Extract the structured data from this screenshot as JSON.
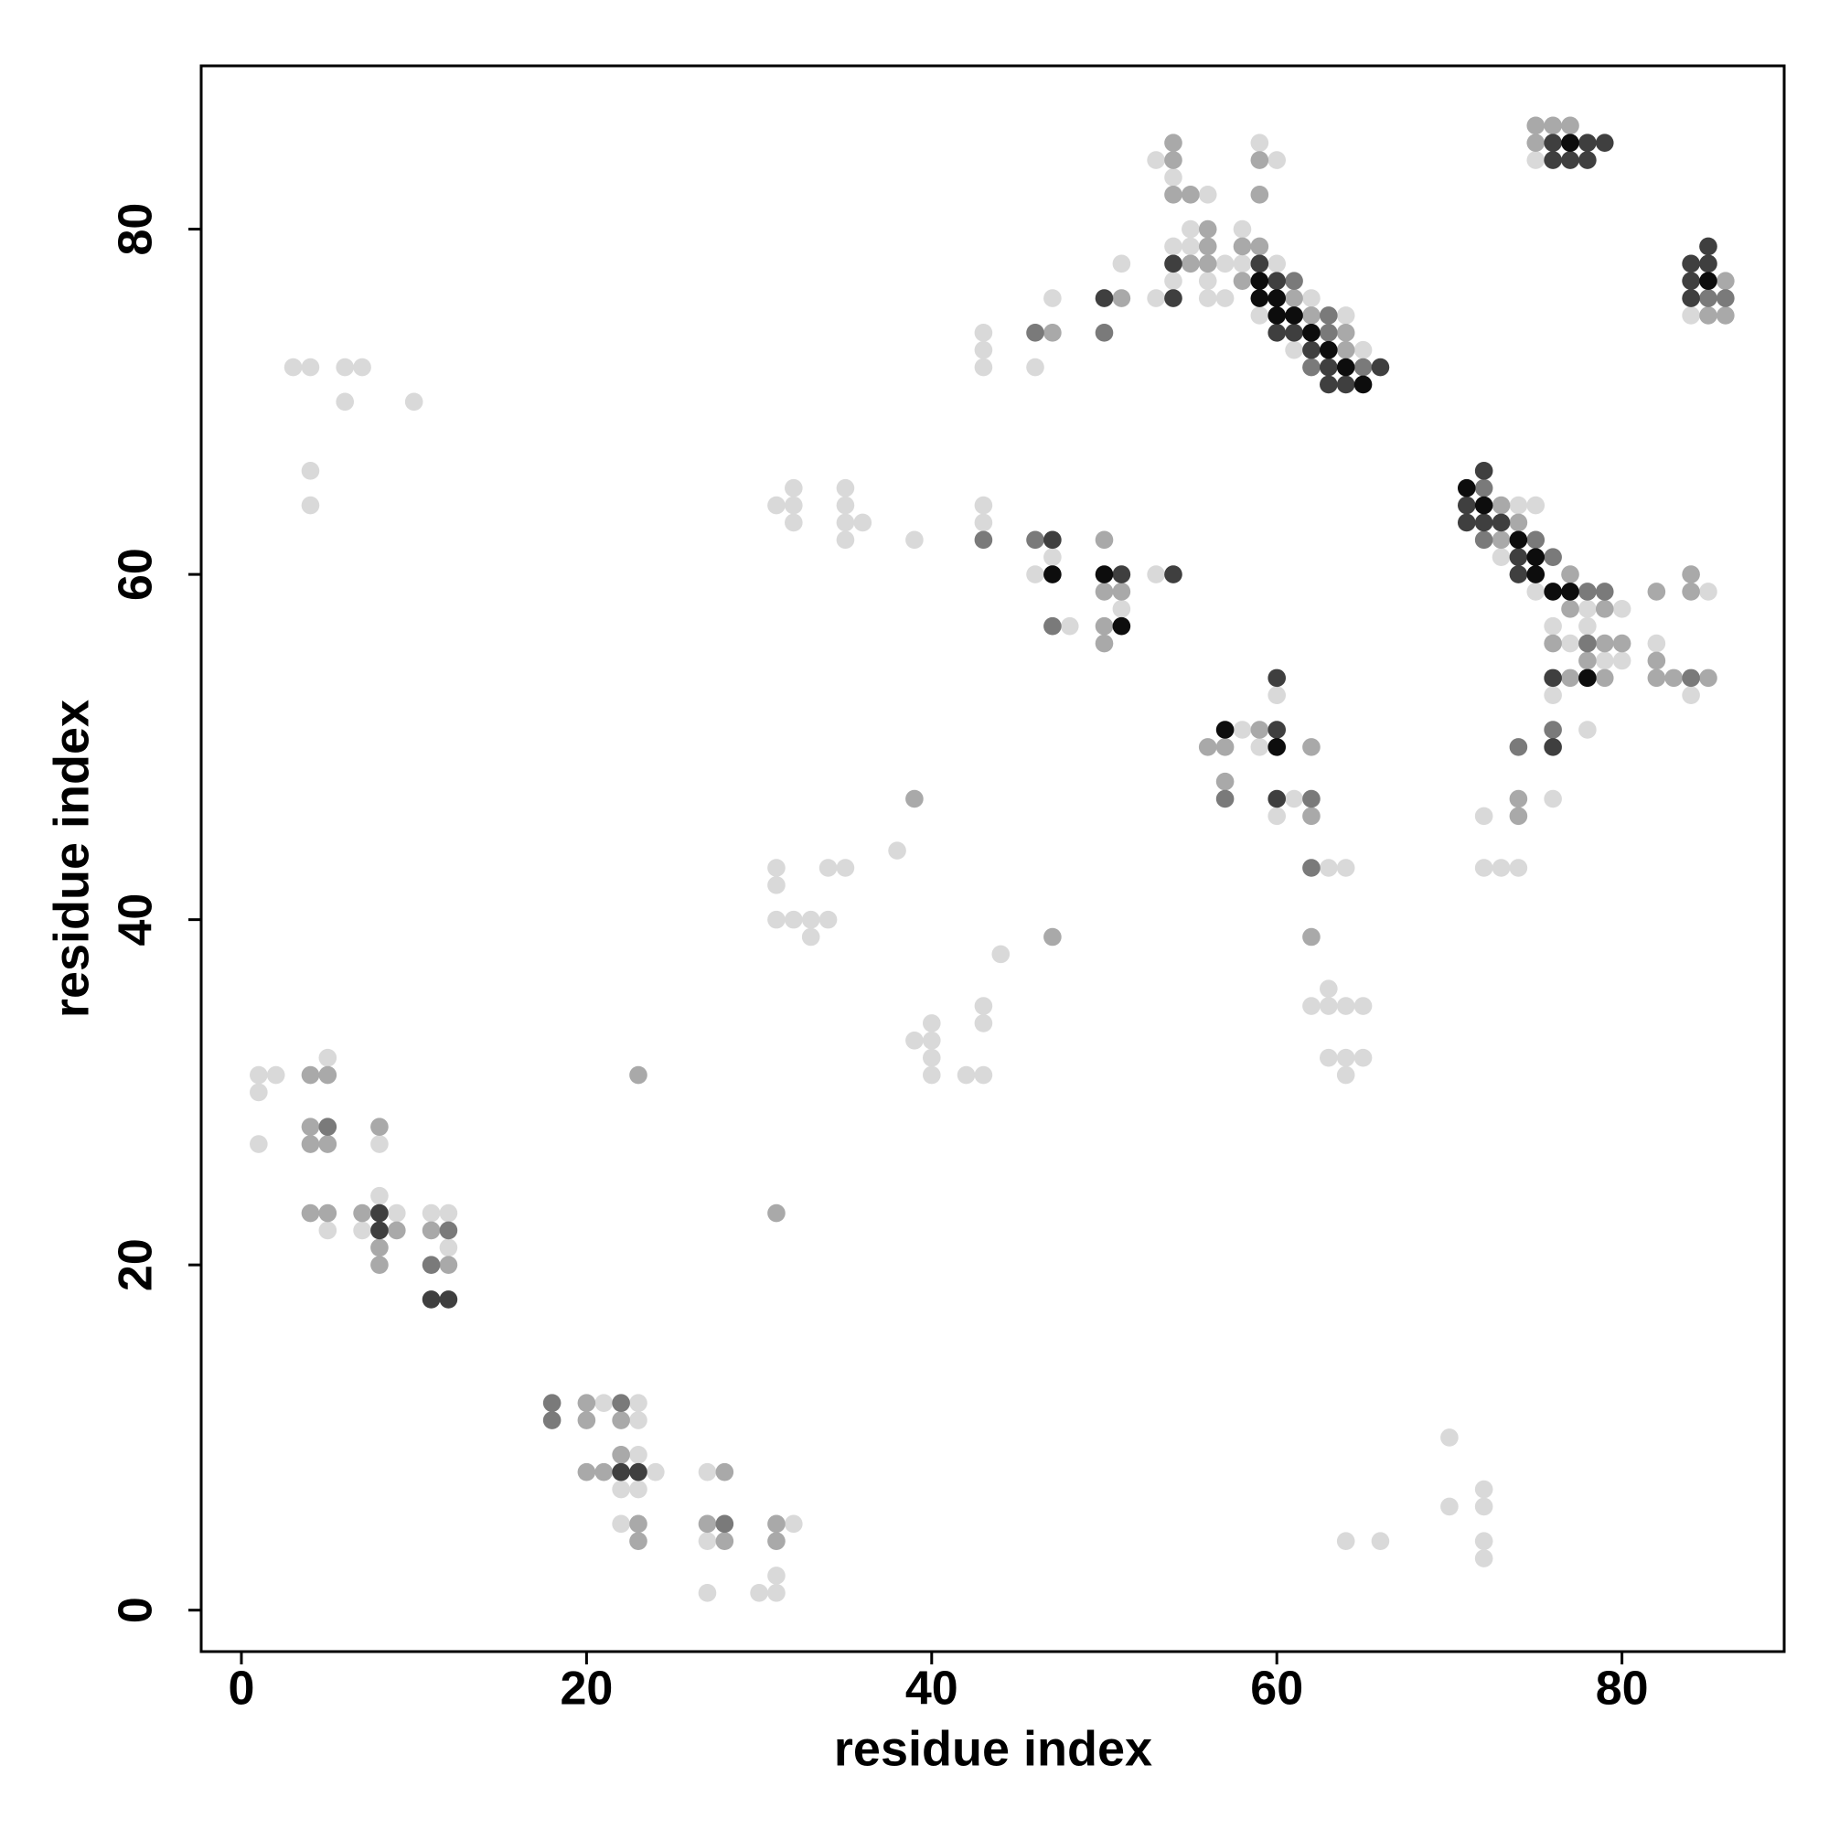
{
  "chart_data": {
    "type": "scatter",
    "x_label": "residue index",
    "y_label": "residue index",
    "xlim": [
      -2.33,
      89.4
    ],
    "ylim": [
      -2.4,
      89.46
    ],
    "xticks": [
      0,
      20,
      40,
      60,
      80
    ],
    "yticks": [
      0,
      20,
      40,
      60,
      80
    ],
    "series": [
      {
        "color": "#d9d9d9",
        "x": [
          1,
          1,
          2,
          1,
          5,
          5,
          7,
          8,
          9,
          8,
          11,
          12,
          12,
          21,
          23,
          23,
          24,
          23,
          22,
          23,
          22,
          27,
          27,
          27,
          30,
          31,
          31,
          32,
          3,
          4,
          6,
          7,
          6,
          10,
          4,
          4,
          31,
          32,
          32,
          32,
          35,
          35,
          35,
          36,
          35,
          39,
          43,
          43,
          43,
          43,
          43,
          46,
          47,
          46,
          47,
          48,
          51,
          51,
          53,
          53,
          54,
          54,
          55,
          55,
          56,
          56,
          57,
          57,
          53,
          54,
          56,
          58,
          58,
          60,
          59,
          62,
          61,
          64,
          65,
          59,
          60,
          75,
          84,
          74,
          75,
          73,
          75,
          78,
          80,
          76,
          78,
          77,
          79,
          80,
          76,
          78,
          72,
          76,
          72,
          73,
          74,
          85,
          82,
          84,
          58,
          59,
          60,
          60,
          61,
          63,
          64,
          62,
          63,
          64,
          65,
          63,
          63,
          64,
          65,
          64,
          38,
          31,
          31,
          31,
          32,
          33,
          34,
          33,
          34,
          35,
          44,
          43,
          43,
          40,
          39,
          40,
          40,
          40,
          42,
          43,
          70,
          70,
          72,
          72,
          72,
          72,
          64,
          66
        ],
        "values": [
          31,
          30,
          31,
          27,
          32,
          22,
          22,
          24,
          23,
          27,
          23,
          23,
          21,
          12,
          12,
          11,
          8,
          9,
          7,
          7,
          5,
          8,
          4,
          1,
          1,
          1,
          2,
          5,
          72,
          72,
          72,
          72,
          70,
          70,
          66,
          64,
          64,
          64,
          65,
          63,
          65,
          64,
          63,
          63,
          62,
          62,
          64,
          63,
          74,
          73,
          72,
          72,
          76,
          60,
          61,
          57,
          58,
          78,
          60,
          76,
          77,
          79,
          79,
          80,
          77,
          76,
          76,
          78,
          84,
          83,
          82,
          80,
          78,
          78,
          75,
          76,
          73,
          75,
          73,
          85,
          84,
          84,
          75,
          64,
          64,
          61,
          59,
          58,
          58,
          57,
          57,
          56,
          55,
          55,
          53,
          51,
          46,
          47,
          43,
          43,
          43,
          59,
          56,
          53,
          51,
          50,
          53,
          46,
          47,
          43,
          43,
          35,
          35,
          35,
          35,
          36,
          32,
          32,
          32,
          31,
          44,
          43,
          42,
          40,
          40,
          40,
          40,
          39,
          43,
          43,
          38,
          35,
          34,
          34,
          33,
          33,
          32,
          31,
          31,
          31,
          10,
          6,
          7,
          6,
          4,
          3,
          4,
          4
        ]
      },
      {
        "color": "#a9a9a9",
        "x": [
          4,
          5,
          4,
          4,
          5,
          4,
          5,
          7,
          9,
          8,
          8,
          8,
          11,
          12,
          20,
          20,
          22,
          20,
          21,
          22,
          23,
          23,
          28,
          27,
          28,
          31,
          31,
          23,
          31,
          47,
          50,
          50,
          51,
          50,
          50,
          51,
          55,
          56,
          56,
          56,
          54,
          54,
          54,
          55,
          58,
          59,
          58,
          61,
          62,
          64,
          64,
          59,
          59,
          75,
          76,
          77,
          75,
          86,
          85,
          86,
          73,
          74,
          73,
          77,
          77,
          79,
          76,
          79,
          80,
          78,
          77,
          79,
          74,
          74,
          82,
          84,
          84,
          82,
          82,
          83,
          85,
          56,
          57,
          59,
          62,
          57,
          62,
          62,
          39,
          47
        ],
        "values": [
          31,
          31,
          28,
          27,
          27,
          23,
          23,
          23,
          22,
          21,
          20,
          28,
          22,
          20,
          12,
          11,
          11,
          8,
          8,
          9,
          5,
          4,
          8,
          5,
          4,
          5,
          4,
          31,
          23,
          74,
          62,
          59,
          59,
          57,
          56,
          76,
          78,
          79,
          80,
          78,
          84,
          85,
          82,
          82,
          79,
          79,
          77,
          76,
          75,
          74,
          73,
          84,
          82,
          86,
          86,
          86,
          85,
          77,
          75,
          75,
          64,
          63,
          62,
          60,
          58,
          58,
          56,
          56,
          56,
          55,
          54,
          54,
          47,
          46,
          59,
          60,
          59,
          55,
          54,
          54,
          54,
          50,
          50,
          51,
          50,
          48,
          46,
          39,
          47,
          39
        ]
      },
      {
        "color": "#7a7a7a",
        "x": [
          5,
          12,
          11,
          18,
          18,
          22,
          28,
          43,
          46,
          46,
          47,
          50,
          61,
          63,
          62,
          65,
          63,
          85,
          86,
          72,
          72,
          75,
          76,
          78,
          79,
          78,
          76,
          74,
          84,
          57,
          62,
          62
        ],
        "values": [
          28,
          22,
          20,
          12,
          11,
          12,
          5,
          62,
          74,
          62,
          57,
          74,
          77,
          74,
          72,
          72,
          75,
          76,
          76,
          65,
          62,
          62,
          61,
          59,
          59,
          56,
          51,
          50,
          54,
          47,
          47,
          43
        ]
      },
      {
        "color": "#3f3f3f",
        "x": [
          8,
          8,
          11,
          12,
          22,
          23,
          47,
          51,
          54,
          50,
          54,
          54,
          59,
          60,
          60,
          61,
          62,
          63,
          66,
          63,
          64,
          76,
          78,
          79,
          76,
          77,
          78,
          84,
          85,
          85,
          84,
          84,
          72,
          71,
          71,
          72,
          73,
          74,
          74,
          76,
          76,
          60,
          60,
          60
        ],
        "values": [
          23,
          22,
          18,
          18,
          8,
          8,
          62,
          60,
          60,
          76,
          76,
          78,
          78,
          77,
          74,
          74,
          73,
          72,
          72,
          71,
          71,
          85,
          85,
          85,
          84,
          84,
          84,
          78,
          79,
          78,
          77,
          76,
          66,
          64,
          63,
          63,
          63,
          61,
          60,
          54,
          50,
          51,
          54,
          47
        ]
      },
      {
        "color": "#0d0d0d",
        "x": [
          47,
          50,
          51,
          59,
          59,
          60,
          60,
          61,
          62,
          63,
          64,
          65,
          77,
          85,
          71,
          72,
          74,
          75,
          75,
          76,
          77,
          78,
          57,
          60
        ],
        "values": [
          60,
          60,
          57,
          77,
          76,
          76,
          75,
          75,
          74,
          73,
          72,
          71,
          85,
          77,
          65,
          64,
          62,
          61,
          60,
          59,
          59,
          54,
          51,
          50
        ]
      }
    ]
  }
}
